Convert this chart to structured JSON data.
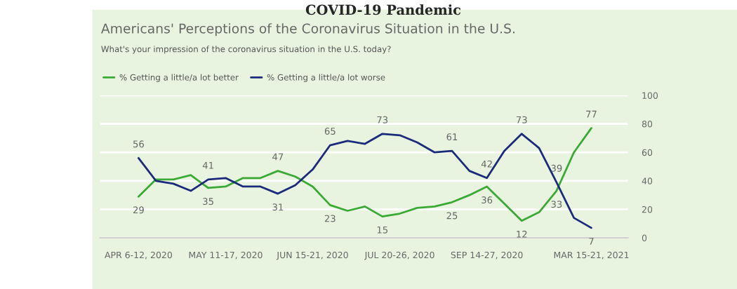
{
  "chart_data": {
    "type": "line",
    "title": "Americans' Perceptions of the Coronavirus Situation in the U.S.",
    "subtitle": "What's your impression of the coronavirus situation in the U.S. today?",
    "annotations": [
      "COVID-19 Pandemic"
    ],
    "categories": [
      "APR 6-12, 2020",
      null,
      null,
      null,
      null,
      "MAY 11-17, 2020",
      null,
      null,
      null,
      null,
      "JUN 15-21, 2020",
      null,
      null,
      null,
      null,
      "JUL 20-26, 2020",
      null,
      null,
      null,
      null,
      "SEP 14-27, 2020",
      null,
      null,
      null,
      null,
      null,
      "MAR 15-21, 2021"
    ],
    "series": [
      {
        "name": "% Getting a little/a lot better",
        "color": "#3aaa35",
        "values": [
          29,
          41,
          41,
          44,
          35,
          36,
          42,
          42,
          47,
          43,
          36,
          23,
          19,
          22,
          15,
          17,
          21,
          22,
          25,
          30,
          36,
          24,
          12,
          18,
          33,
          60,
          77
        ],
        "value_labels": [
          "29",
          null,
          null,
          null,
          "35",
          null,
          null,
          null,
          "47",
          null,
          null,
          "23",
          null,
          null,
          "15",
          null,
          null,
          null,
          "25",
          null,
          "36",
          null,
          "12",
          null,
          "33",
          null,
          "77"
        ]
      },
      {
        "name": "% Getting a little/a lot worse",
        "color": "#1b2a7a",
        "values": [
          56,
          40,
          38,
          33,
          41,
          42,
          36,
          36,
          31,
          37,
          48,
          65,
          68,
          66,
          73,
          72,
          67,
          60,
          61,
          47,
          42,
          61,
          73,
          63,
          39,
          14,
          7
        ],
        "value_labels": [
          "56",
          null,
          null,
          null,
          "41",
          null,
          null,
          null,
          "31",
          null,
          null,
          "65",
          null,
          null,
          "73",
          null,
          null,
          null,
          "61",
          null,
          "42",
          null,
          "73",
          null,
          "39",
          null,
          "7"
        ]
      }
    ],
    "ylim": [
      0,
      100
    ],
    "yticks": [
      0,
      20,
      40,
      60,
      80,
      100
    ],
    "grid": "y",
    "legend": "top left",
    "marker": "none",
    "line_style": "solid"
  }
}
